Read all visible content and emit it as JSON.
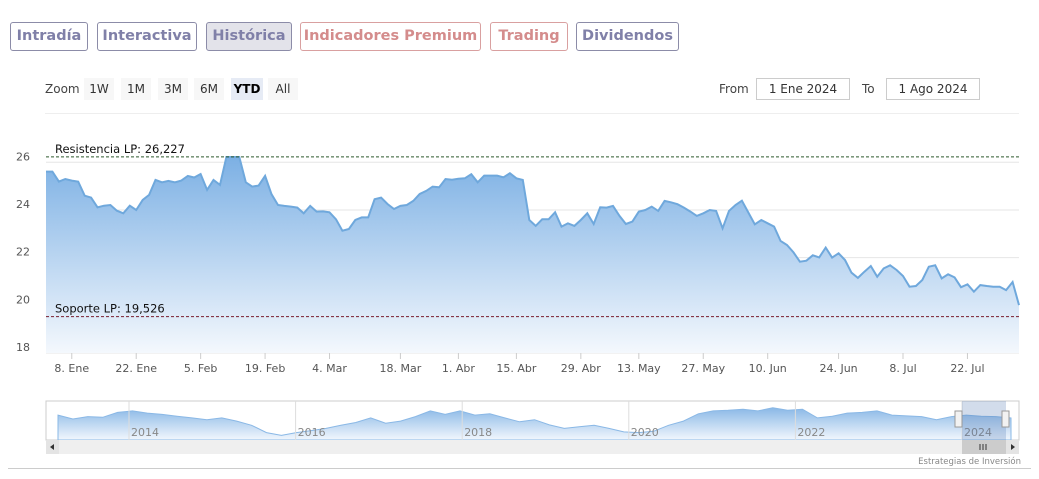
{
  "tabs": [
    {
      "label": "Intradía"
    },
    {
      "label": "Interactiva"
    },
    {
      "label": "Histórica"
    },
    {
      "label": "Indicadores Premium"
    },
    {
      "label": "Trading"
    },
    {
      "label": "Dividendos"
    }
  ],
  "zoom": {
    "label": "Zoom",
    "buttons": [
      "1W",
      "1M",
      "3M",
      "6M",
      "YTD",
      "All"
    ],
    "selected": "YTD"
  },
  "range": {
    "from_label": "From",
    "from": "1 Ene 2024",
    "to_label": "To",
    "to": "1 Ago 2024"
  },
  "credits": "Estrategias de Inversión",
  "colors": {
    "line": "#6fa8dc",
    "resist": "#2d5a2d",
    "support": "#7a1f2f"
  },
  "chart_data": {
    "type": "area",
    "ylim": [
      18,
      26.227
    ],
    "yticks": [
      "18",
      "20",
      "22",
      "24",
      "26"
    ],
    "ytick_values": [
      18,
      20,
      22,
      24,
      26
    ],
    "xticks": [
      {
        "label": "8. Ene",
        "index": 4
      },
      {
        "label": "22. Ene",
        "index": 14
      },
      {
        "label": "5. Feb",
        "index": 24
      },
      {
        "label": "19. Feb",
        "index": 34
      },
      {
        "label": "4. Mar",
        "index": 44
      },
      {
        "label": "18. Mar",
        "index": 55
      },
      {
        "label": "1. Abr",
        "index": 64
      },
      {
        "label": "15. Abr",
        "index": 73
      },
      {
        "label": "29. Abr",
        "index": 83
      },
      {
        "label": "13. May",
        "index": 92
      },
      {
        "label": "27. May",
        "index": 102
      },
      {
        "label": "10. Jun",
        "index": 112
      },
      {
        "label": "24. Jun",
        "index": 123
      },
      {
        "label": "8. Jul",
        "index": 133
      },
      {
        "label": "22. Jul",
        "index": 143
      }
    ],
    "resistance": {
      "label": "Resistencia LP: 26,227",
      "value": 26.227
    },
    "support": {
      "label": "Soporte LP: 19,526",
      "value": 19.526
    },
    "values": [
      25.61,
      25.61,
      25.19,
      25.3,
      25.23,
      25.19,
      24.6,
      24.52,
      24.11,
      24.18,
      24.21,
      23.97,
      23.86,
      24.18,
      24.0,
      24.42,
      24.63,
      25.26,
      25.16,
      25.22,
      25.16,
      25.23,
      25.43,
      25.36,
      25.51,
      24.84,
      25.26,
      25.05,
      26.22,
      26.22,
      26.22,
      25.16,
      24.98,
      25.02,
      25.43,
      24.66,
      24.21,
      24.17,
      24.14,
      24.1,
      23.86,
      24.17,
      23.93,
      23.94,
      23.9,
      23.61,
      23.13,
      23.2,
      23.58,
      23.69,
      23.69,
      24.45,
      24.52,
      24.25,
      24.04,
      24.17,
      24.21,
      24.38,
      24.67,
      24.8,
      24.98,
      24.95,
      25.3,
      25.27,
      25.31,
      25.33,
      25.5,
      25.16,
      25.44,
      25.44,
      25.44,
      25.37,
      25.54,
      25.33,
      25.26,
      23.58,
      23.33,
      23.61,
      23.61,
      23.9,
      23.3,
      23.44,
      23.33,
      23.58,
      23.86,
      23.41,
      24.11,
      24.1,
      24.17,
      23.75,
      23.41,
      23.51,
      23.93,
      24.0,
      24.14,
      23.96,
      24.38,
      24.32,
      24.24,
      24.1,
      23.93,
      23.75,
      23.86,
      24.0,
      23.96,
      23.23,
      23.96,
      24.21,
      24.39,
      23.89,
      23.4,
      23.58,
      23.44,
      23.3,
      22.7,
      22.53,
      22.22,
      21.83,
      21.87,
      22.1,
      22.01,
      22.42,
      22.0,
      22.18,
      21.9,
      21.37,
      21.15,
      21.41,
      21.65,
      21.2,
      21.55,
      21.68,
      21.48,
      21.23,
      20.78,
      20.81,
      21.06,
      21.62,
      21.68,
      21.13,
      21.3,
      21.17,
      20.76,
      20.88,
      20.57,
      20.85,
      20.81,
      20.78,
      20.78,
      20.64,
      20.98,
      20.01
    ],
    "navigator": {
      "xticks": [
        "2014",
        "2016",
        "2018",
        "2020",
        "2022",
        "2024"
      ],
      "levels": [
        0.71,
        0.6,
        0.67,
        0.65,
        0.79,
        0.83,
        0.77,
        0.73,
        0.68,
        0.63,
        0.58,
        0.63,
        0.54,
        0.42,
        0.21,
        0.13,
        0.21,
        0.27,
        0.33,
        0.42,
        0.5,
        0.63,
        0.48,
        0.54,
        0.67,
        0.83,
        0.73,
        0.83,
        0.71,
        0.75,
        0.63,
        0.52,
        0.58,
        0.43,
        0.33,
        0.38,
        0.42,
        0.33,
        0.23,
        0.21,
        0.25,
        0.42,
        0.54,
        0.75,
        0.83,
        0.85,
        0.88,
        0.83,
        0.92,
        0.85,
        0.88,
        0.63,
        0.68,
        0.77,
        0.79,
        0.83,
        0.71,
        0.69,
        0.67,
        0.58,
        0.67,
        0.71,
        0.68,
        0.67,
        0.63
      ]
    }
  }
}
